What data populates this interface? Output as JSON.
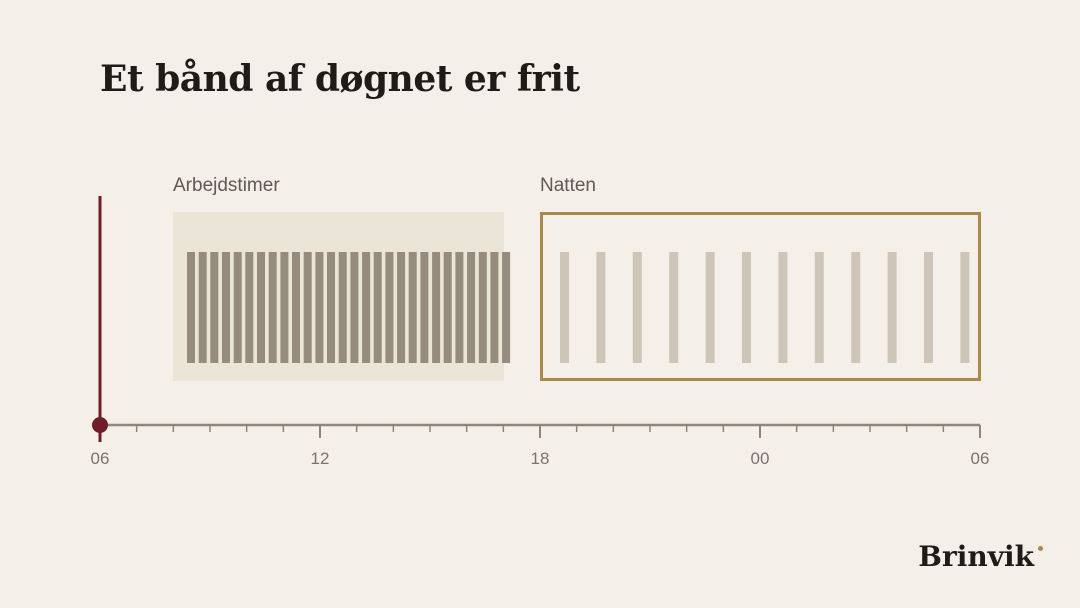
{
  "title": "Et bånd af døgnet er frit",
  "work_label": "Arbejdstimer",
  "night_label": "Natten",
  "axis_ticks": [
    "06",
    "12",
    "18",
    "00",
    "06"
  ],
  "brand": "Brinvik",
  "colors": {
    "background": "#f4efe8",
    "work_fill": "#ebe5d8",
    "work_stripes": "#958c7e",
    "night_border": "#a88a4c",
    "night_stripes": "#cdc5b8",
    "now_marker": "#6f1d2a",
    "axis": "#8c867c"
  }
}
